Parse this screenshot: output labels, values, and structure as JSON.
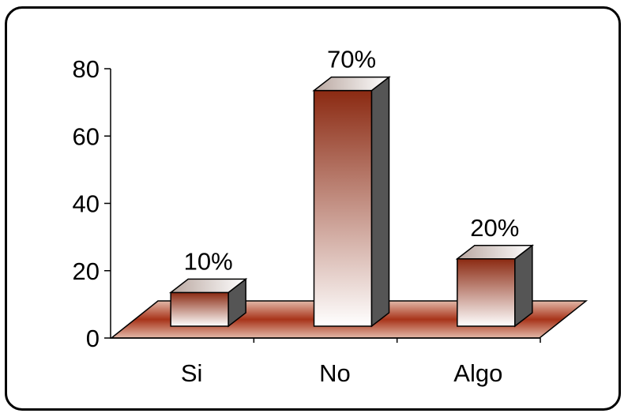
{
  "chart_data": {
    "type": "bar",
    "style": "3d",
    "categories": [
      "Si",
      "No",
      "Algo"
    ],
    "values": [
      10,
      70,
      20
    ],
    "data_labels": [
      "10%",
      "70%",
      "20%"
    ],
    "title": "",
    "xlabel": "",
    "ylabel": "",
    "ylim": [
      0,
      80
    ],
    "yticks": [
      "0",
      "20",
      "40",
      "60",
      "80"
    ],
    "grid": false,
    "legend": "none",
    "colors": {
      "bar_top": "#8b2a12",
      "bar_bottom": "#ffffff",
      "bar_side": "#555555",
      "bar_cap": "#b9a7a0",
      "floor_edge": "#e2b8a8",
      "floor_center": "#a8341a"
    }
  }
}
